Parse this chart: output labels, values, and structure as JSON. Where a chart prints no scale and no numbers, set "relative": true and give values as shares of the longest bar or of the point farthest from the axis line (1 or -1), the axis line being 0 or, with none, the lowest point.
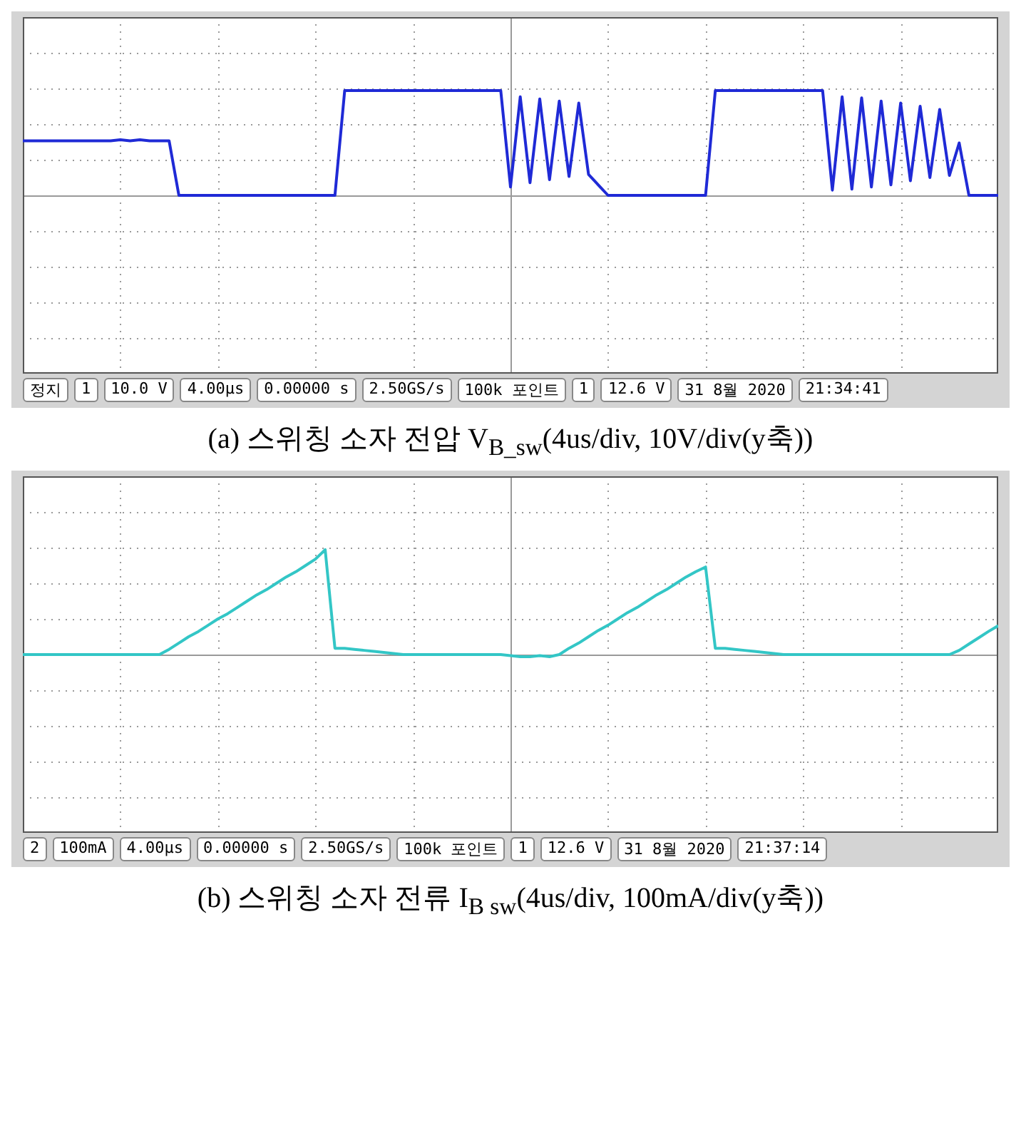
{
  "chart_data": [
    {
      "type": "line",
      "title": "(a) 스위칭 소자 전압 V$_{B_sw}$(4us/div, 10V/div(y축))",
      "relative": true,
      "grid": true,
      "categories": [
        null,
        null,
        null,
        null,
        null,
        null,
        null,
        null,
        null,
        null,
        null,
        null,
        null,
        null,
        null,
        null,
        null,
        null,
        null,
        null,
        null,
        null,
        null,
        null,
        null,
        null,
        null,
        null,
        null,
        null,
        null,
        null,
        null,
        null,
        null,
        null,
        null,
        null,
        null,
        null,
        null,
        null,
        null,
        null,
        null,
        null,
        null,
        null,
        null,
        null,
        null,
        null,
        null,
        null,
        null,
        null,
        null,
        null,
        null,
        null,
        null,
        null,
        null,
        null,
        null,
        null,
        null,
        null,
        null,
        null,
        null,
        null,
        null,
        null,
        null,
        null,
        null,
        null,
        null,
        null,
        null,
        null,
        null,
        null,
        null,
        null,
        null,
        null,
        null,
        null,
        null,
        null,
        null,
        null,
        null,
        null,
        null,
        null,
        null,
        null,
        null
      ],
      "series": [
        {
          "color": "#1f2ad6",
          "values": [
            0.52,
            0.52,
            0.52,
            0.52,
            0.52,
            0.52,
            0.52,
            0.52,
            0.52,
            0.52,
            0.53,
            0.52,
            0.53,
            0.52,
            0.52,
            0.52,
            0,
            0,
            0,
            0,
            0,
            0,
            0,
            0,
            0,
            0,
            0,
            0,
            0,
            0,
            0,
            0,
            0,
            1,
            1,
            1,
            1,
            1,
            1,
            1,
            1,
            1,
            1,
            1,
            1,
            1,
            1,
            1,
            1,
            1,
            0.08,
            0.94,
            0.12,
            0.92,
            0.15,
            0.9,
            0.18,
            0.88,
            0.2,
            0.1,
            0,
            0,
            0,
            0,
            0,
            0,
            0,
            0,
            0,
            0,
            0,
            1,
            1,
            1,
            1,
            1,
            1,
            1,
            1,
            1,
            1,
            1,
            1,
            0.05,
            0.94,
            0.06,
            0.93,
            0.08,
            0.9,
            0.1,
            0.88,
            0.14,
            0.85,
            0.17,
            0.82,
            0.19,
            0.5,
            0,
            0,
            0,
            0
          ]
        }
      ],
      "annotations": [
        "정지",
        "1",
        "10.0 V",
        "4.00µs",
        "0.00000 s",
        "2.50GS/s",
        "100k 포인트",
        "1",
        "12.6 V",
        "31 8월 2020",
        "21:34:41"
      ]
    },
    {
      "type": "line",
      "title": "(b) 스위칭 소자 전류 I$_{B sw}$(4us/div, 100mA/div(y축))",
      "relative": true,
      "grid": true,
      "categories": [
        null,
        null,
        null,
        null,
        null,
        null,
        null,
        null,
        null,
        null,
        null,
        null,
        null,
        null,
        null,
        null,
        null,
        null,
        null,
        null,
        null,
        null,
        null,
        null,
        null,
        null,
        null,
        null,
        null,
        null,
        null,
        null,
        null,
        null,
        null,
        null,
        null,
        null,
        null,
        null,
        null,
        null,
        null,
        null,
        null,
        null,
        null,
        null,
        null,
        null,
        null,
        null,
        null,
        null,
        null,
        null,
        null,
        null,
        null,
        null,
        null,
        null,
        null,
        null,
        null,
        null,
        null,
        null,
        null,
        null,
        null,
        null,
        null,
        null,
        null,
        null,
        null,
        null,
        null,
        null,
        null,
        null,
        null,
        null,
        null,
        null,
        null,
        null,
        null,
        null,
        null,
        null,
        null,
        null,
        null,
        null,
        null,
        null,
        null,
        null,
        null
      ],
      "series": [
        {
          "color": "#33c6c6",
          "values": [
            0,
            0,
            0,
            0,
            0,
            0,
            0,
            0,
            0,
            0,
            0,
            0,
            0,
            0,
            0,
            0.05,
            0.11,
            0.17,
            0.22,
            0.28,
            0.34,
            0.39,
            0.45,
            0.51,
            0.57,
            0.62,
            0.68,
            0.74,
            0.79,
            0.85,
            0.91,
            1,
            0.06,
            0.06,
            0.05,
            0.04,
            0.03,
            0.02,
            0.01,
            0,
            0,
            0,
            0,
            0,
            0,
            0,
            0,
            0,
            0,
            0,
            -0.01,
            -0.02,
            -0.02,
            -0.01,
            -0.02,
            0,
            0.06,
            0.11,
            0.17,
            0.23,
            0.28,
            0.34,
            0.4,
            0.45,
            0.51,
            0.57,
            0.62,
            0.68,
            0.74,
            0.79,
            0.835,
            0.06,
            0.06,
            0.05,
            0.04,
            0.03,
            0.02,
            0.01,
            0,
            0,
            0,
            0,
            0,
            0,
            0,
            0,
            0,
            0,
            0,
            0,
            0,
            0,
            0,
            0,
            0,
            0,
            0.04,
            0.1,
            0.16,
            0.22,
            0.275
          ]
        }
      ],
      "annotations": [
        "2",
        "100mA",
        "4.00µs",
        "0.00000 s",
        "2.50GS/s",
        "100k 포인트",
        "1",
        "12.6 V",
        "31 8월 2020",
        "21:37:14"
      ]
    }
  ]
}
